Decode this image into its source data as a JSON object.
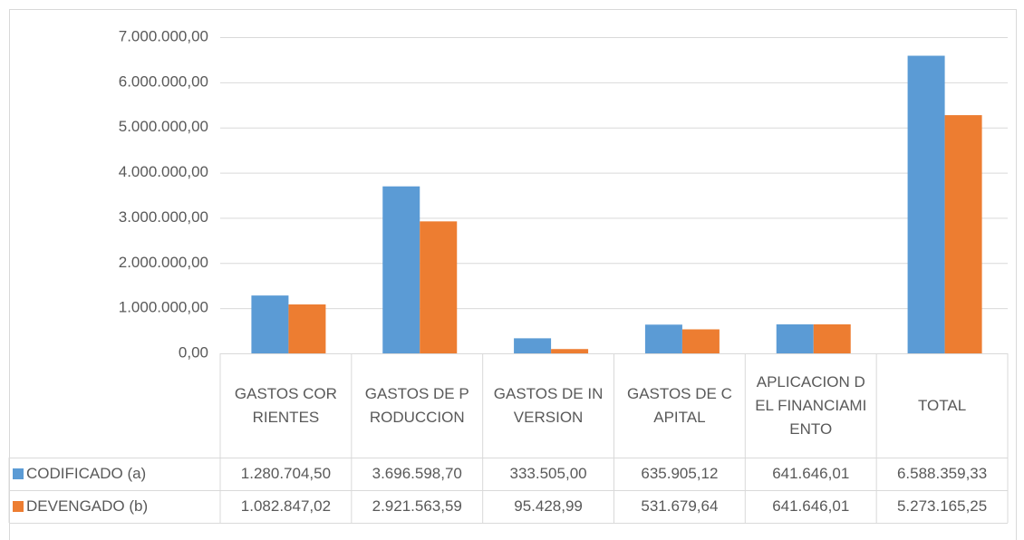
{
  "chart_data": {
    "type": "bar",
    "categories": [
      "GASTOS CORRIENTES",
      "GASTOS DE PRODUCCION",
      "GASTOS DE INVERSION",
      "GASTOS DE CAPITAL",
      "APLICACION DEL FINANCIAMIENTO",
      "TOTAL"
    ],
    "series": [
      {
        "name": "CODIFICADO (a)",
        "color": "#5b9bd5",
        "values": [
          1280704.5,
          3696598.7,
          333505.0,
          635905.12,
          641646.01,
          6588359.33
        ],
        "value_labels": [
          "1.280.704,50",
          "3.696.598,70",
          "333.505,00",
          "635.905,12",
          "641.646,01",
          "6.588.359,33"
        ]
      },
      {
        "name": "DEVENGADO (b)",
        "color": "#ed7d31",
        "values": [
          1082847.02,
          2921563.59,
          95428.99,
          531679.64,
          641646.01,
          5273165.25
        ],
        "value_labels": [
          "1.082.847,02",
          "2.921.563,59",
          "95.428,99",
          "531.679,64",
          "641.646,01",
          "5.273.165,25"
        ]
      }
    ],
    "ylim": [
      0,
      7000000
    ],
    "yticks": [
      {
        "value": 0,
        "label": "0,00"
      },
      {
        "value": 1000000,
        "label": "1.000.000,00"
      },
      {
        "value": 2000000,
        "label": "2.000.000,00"
      },
      {
        "value": 3000000,
        "label": "3.000.000,00"
      },
      {
        "value": 4000000,
        "label": "4.000.000,00"
      },
      {
        "value": 5000000,
        "label": "5.000.000,00"
      },
      {
        "value": 6000000,
        "label": "6.000.000,00"
      },
      {
        "value": 7000000,
        "label": "7.000.000,00"
      }
    ],
    "grid": true,
    "legend": "table"
  }
}
